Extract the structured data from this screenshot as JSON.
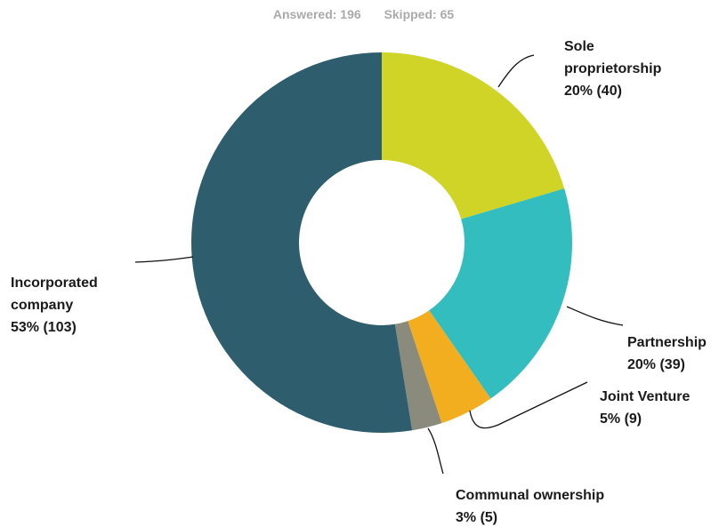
{
  "header": {
    "answered": "Answered: 196",
    "skipped": "Skipped: 65"
  },
  "chart_data": {
    "type": "pie",
    "variant": "donut",
    "total": 196,
    "slices": [
      {
        "name": "Sole proprietorship",
        "count": 40,
        "percent_label": "20% (40)",
        "color": "#cfd427"
      },
      {
        "name": "Partnership",
        "count": 39,
        "percent_label": "20% (39)",
        "color": "#33bdbf"
      },
      {
        "name": "Joint Venture",
        "count": 9,
        "percent_label": "5% (9)",
        "color": "#f3ae1f"
      },
      {
        "name": "Communal ownership",
        "count": 5,
        "percent_label": "3% (5)",
        "color": "#8a8a7d"
      },
      {
        "name": "Incorporated company",
        "count": 103,
        "percent_label": "53% (103)",
        "color": "#2e5e6d"
      }
    ]
  },
  "labels": {
    "sole": [
      "Sole",
      "proprietorship",
      "20% (40)"
    ],
    "partnership": [
      "Partnership",
      "20% (39)"
    ],
    "joint": [
      "Joint Venture",
      "5% (9)"
    ],
    "communal": [
      "Communal ownership",
      "3% (5)"
    ],
    "incorporated": [
      "Incorporated",
      "company",
      "53% (103)"
    ]
  }
}
